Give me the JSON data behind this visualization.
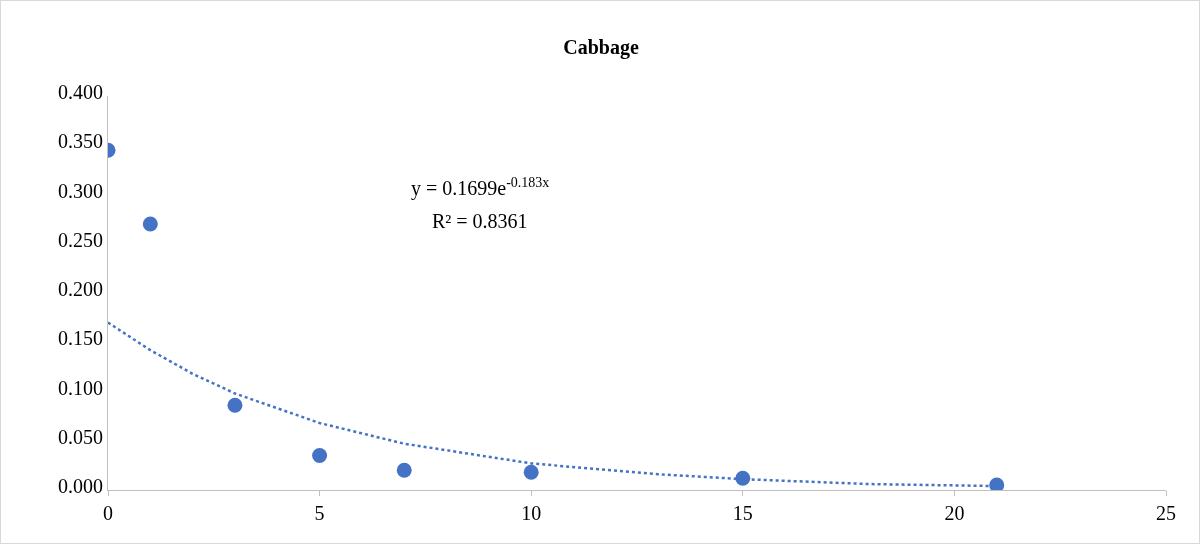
{
  "chart_data": {
    "type": "scatter",
    "title": "Cabbage",
    "grid": false,
    "xlim": [
      0,
      25
    ],
    "xticks": [
      0,
      5,
      10,
      15,
      20,
      25
    ],
    "ylim": [
      0,
      0.4
    ],
    "yticks": [
      {
        "value": 0,
        "label": "0.000"
      },
      {
        "value": 0.05,
        "label": "0.050"
      },
      {
        "value": 0.1,
        "label": "0.100"
      },
      {
        "value": 0.15,
        "label": "0.150"
      },
      {
        "value": 0.2,
        "label": "0.200"
      },
      {
        "value": 0.25,
        "label": "0.250"
      },
      {
        "value": 0.3,
        "label": "0.300"
      },
      {
        "value": 0.35,
        "label": "0.350"
      },
      {
        "value": 0.4,
        "label": "0.400"
      }
    ],
    "series": [
      {
        "marker": "circle",
        "color": "#4472c4",
        "x": [
          0,
          1,
          3,
          5,
          7,
          10,
          15,
          21
        ],
        "values": [
          0.345,
          0.27,
          0.086,
          0.035,
          0.02,
          0.018,
          0.012,
          0.005
        ]
      },
      {
        "type": "line",
        "line_style": "dotted",
        "marker": "none",
        "color": "#4472c4",
        "x": [
          0,
          1,
          2,
          3,
          5,
          7,
          10,
          13,
          15,
          18,
          21
        ],
        "values": [
          0.17,
          0.142,
          0.118,
          0.098,
          0.068,
          0.047,
          0.027,
          0.016,
          0.011,
          0.006,
          0.004
        ]
      }
    ],
    "annotations": [
      "y = 0.1699e$^{-0.183x}$",
      "R² = 0.8361"
    ]
  }
}
